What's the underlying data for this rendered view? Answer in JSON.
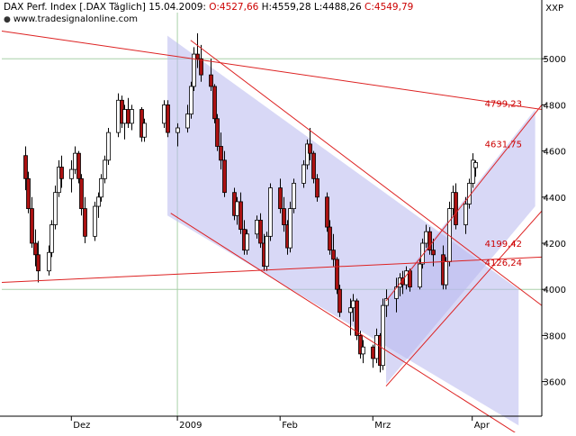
{
  "header": {
    "index_name": "DAX Perf. Index [.DAX Täglich]",
    "date": "15.04.2009",
    "open": "O:4527,66",
    "high": "H:4559,28",
    "low": "L:4488,26",
    "close": "C:4549,79",
    "website": "www.tradesignalonline.com",
    "symbol_right": "XXP"
  },
  "chart_data": {
    "type": "candlestick",
    "title": "DAX Perf. Index [.DAX Täglich]",
    "ylim": [
      3450,
      5200
    ],
    "y_ticks": [
      3600,
      3800,
      4000,
      4200,
      4400,
      4600,
      4800,
      5000
    ],
    "y_tick_labels": [
      "3600",
      "3800",
      "4000",
      "4200",
      "4400",
      "4600",
      "4800",
      "5000"
    ],
    "x_month_labels": [
      {
        "label": "Dez",
        "date": "2008-12-01"
      },
      {
        "label": "2009",
        "date": "2009-01-02"
      },
      {
        "label": "Feb",
        "date": "2009-02-02"
      },
      {
        "label": "Mrz",
        "date": "2009-03-02"
      },
      {
        "label": "Apr",
        "date": "2009-04-01"
      }
    ],
    "colors": {
      "up_body": "#ffffff",
      "down_body": "#aa1111",
      "wick": "#000000",
      "trendline": "#dd2222",
      "channel_fill": "#b8b8ee",
      "grid": "#a8d0a8"
    },
    "candles_ohlc": [
      [
        4580,
        4620,
        4430,
        4480
      ],
      [
        4480,
        4510,
        4330,
        4350
      ],
      [
        4350,
        4400,
        4180,
        4200
      ],
      [
        4200,
        4260,
        4100,
        4150
      ],
      [
        4150,
        4210,
        4030,
        4080
      ],
      [
        4080,
        4190,
        4060,
        4160
      ],
      [
        4160,
        4300,
        4140,
        4280
      ],
      [
        4280,
        4450,
        4260,
        4420
      ],
      [
        4420,
        4560,
        4400,
        4530
      ],
      [
        4530,
        4580,
        4440,
        4480
      ],
      [
        4480,
        4560,
        4420,
        4520
      ],
      [
        4520,
        4620,
        4500,
        4590
      ],
      [
        4590,
        4600,
        4460,
        4480
      ],
      [
        4480,
        4500,
        4320,
        4350
      ],
      [
        4350,
        4400,
        4200,
        4230
      ],
      [
        4230,
        4380,
        4210,
        4360
      ],
      [
        4360,
        4420,
        4310,
        4400
      ],
      [
        4400,
        4500,
        4380,
        4480
      ],
      [
        4480,
        4580,
        4460,
        4560
      ],
      [
        4560,
        4700,
        4540,
        4680
      ],
      [
        4680,
        4850,
        4660,
        4820
      ],
      [
        4820,
        4840,
        4700,
        4720
      ],
      [
        4720,
        4800,
        4650,
        4780
      ],
      [
        4780,
        4830,
        4700,
        4720
      ],
      [
        4720,
        4800,
        4690,
        4780
      ],
      [
        4780,
        4790,
        4640,
        4660
      ],
      [
        4660,
        4740,
        4640,
        4720
      ],
      [
        4720,
        4820,
        4700,
        4800
      ],
      [
        4800,
        4820,
        4660,
        4680
      ],
      [
        4680,
        4720,
        4620,
        4700
      ],
      [
        4700,
        4800,
        4680,
        4760
      ],
      [
        4760,
        4900,
        4740,
        4880
      ],
      [
        4880,
        5050,
        4860,
        5020
      ],
      [
        5020,
        5110,
        4960,
        5000
      ],
      [
        5000,
        5060,
        4900,
        4930
      ],
      [
        4930,
        5000,
        4860,
        4880
      ],
      [
        4880,
        4890,
        4720,
        4740
      ],
      [
        4740,
        4760,
        4600,
        4620
      ],
      [
        4620,
        4680,
        4520,
        4560
      ],
      [
        4560,
        4600,
        4400,
        4420
      ],
      [
        4420,
        4440,
        4300,
        4320
      ],
      [
        4320,
        4400,
        4280,
        4380
      ],
      [
        4380,
        4420,
        4240,
        4260
      ],
      [
        4260,
        4300,
        4150,
        4170
      ],
      [
        4170,
        4260,
        4150,
        4240
      ],
      [
        4240,
        4320,
        4220,
        4300
      ],
      [
        4300,
        4330,
        4180,
        4200
      ],
      [
        4200,
        4240,
        4080,
        4100
      ],
      [
        4100,
        4250,
        4080,
        4230
      ],
      [
        4230,
        4460,
        4210,
        4440
      ],
      [
        4440,
        4480,
        4330,
        4350
      ],
      [
        4350,
        4400,
        4250,
        4280
      ],
      [
        4280,
        4300,
        4150,
        4180
      ],
      [
        4180,
        4380,
        4160,
        4350
      ],
      [
        4350,
        4480,
        4330,
        4460
      ],
      [
        4460,
        4560,
        4440,
        4540
      ],
      [
        4540,
        4650,
        4520,
        4630
      ],
      [
        4630,
        4700,
        4560,
        4590
      ],
      [
        4590,
        4600,
        4460,
        4480
      ],
      [
        4480,
        4500,
        4380,
        4400
      ],
      [
        4400,
        4420,
        4250,
        4270
      ],
      [
        4270,
        4300,
        4150,
        4170
      ],
      [
        4170,
        4240,
        4100,
        4130
      ],
      [
        4130,
        4140,
        3980,
        4000
      ],
      [
        4000,
        4020,
        3880,
        3900
      ],
      [
        3900,
        3960,
        3800,
        3920
      ],
      [
        3920,
        3980,
        3860,
        3950
      ],
      [
        3950,
        3960,
        3780,
        3800
      ],
      [
        3800,
        3820,
        3700,
        3720
      ],
      [
        3720,
        3780,
        3680,
        3750
      ],
      [
        3750,
        3760,
        3660,
        3700
      ],
      [
        3700,
        3830,
        3680,
        3800
      ],
      [
        3800,
        3810,
        3640,
        3670
      ],
      [
        3670,
        3960,
        3650,
        3930
      ],
      [
        3930,
        4000,
        3880,
        3960
      ],
      [
        3960,
        4050,
        3900,
        4010
      ],
      [
        4010,
        4070,
        3970,
        4050
      ],
      [
        4050,
        4080,
        3980,
        4020
      ],
      [
        4020,
        4100,
        4000,
        4080
      ],
      [
        4080,
        4090,
        3990,
        4010
      ],
      [
        4010,
        4130,
        4000,
        4110
      ],
      [
        4110,
        4220,
        4090,
        4200
      ],
      [
        4200,
        4280,
        4180,
        4250
      ],
      [
        4250,
        4270,
        4150,
        4170
      ],
      [
        4170,
        4220,
        4100,
        4150
      ],
      [
        4150,
        4190,
        4000,
        4020
      ],
      [
        4020,
        4140,
        4000,
        4120
      ],
      [
        4120,
        4380,
        4100,
        4350
      ],
      [
        4350,
        4450,
        4320,
        4420
      ],
      [
        4420,
        4460,
        4260,
        4280
      ],
      [
        4280,
        4400,
        4240,
        4370
      ],
      [
        4370,
        4480,
        4350,
        4460
      ],
      [
        4460,
        4590,
        4440,
        4560
      ],
      [
        4527.66,
        4559.28,
        4488.26,
        4549.79
      ]
    ],
    "trendlines": [
      {
        "x": [
          "2008-11-10",
          "2009-04-22"
        ],
        "y": [
          5120,
          4780
        ]
      },
      {
        "x": [
          "2008-11-10",
          "2009-04-22"
        ],
        "y": [
          4030,
          4140
        ]
      },
      {
        "x": [
          "2009-01-06",
          "2009-04-22"
        ],
        "y": [
          5080,
          3930
        ]
      },
      {
        "x": [
          "2008-12-31",
          "2009-04-16"
        ],
        "y": [
          4330,
          3360
        ]
      },
      {
        "x": [
          "2009-03-06",
          "2009-04-22"
        ],
        "y": [
          3950,
          4800
        ]
      },
      {
        "x": [
          "2009-03-06",
          "2009-04-22"
        ],
        "y": [
          3580,
          4340
        ]
      }
    ],
    "channels": [
      {
        "x": [
          "2008-12-30",
          "2009-04-15"
        ],
        "top": [
          5100,
          4000
        ],
        "bottom": [
          4320,
          3410
        ]
      },
      {
        "x": [
          "2009-03-06",
          "2009-04-20"
        ],
        "top": [
          3960,
          4780
        ],
        "bottom": [
          3590,
          4360
        ]
      }
    ],
    "price_labels": [
      "4799,23",
      "4631,75",
      "4199,42",
      "4126,24"
    ]
  }
}
